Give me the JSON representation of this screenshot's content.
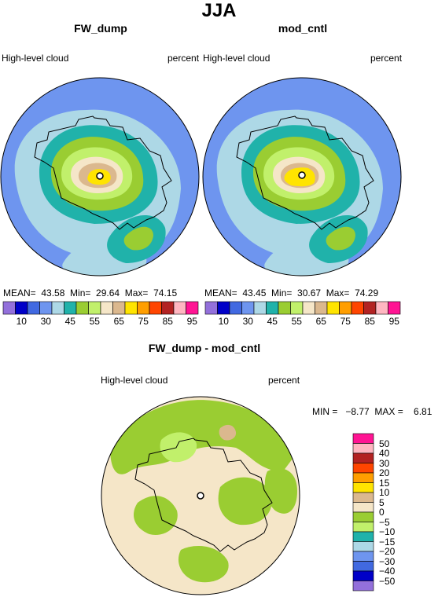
{
  "main_title": "JJA",
  "panels": [
    {
      "title": "FW_dump",
      "left_label": "High-level cloud",
      "right_label": "percent",
      "stats": "MEAN=  43.58  Min=  29.64  Max=  74.15"
    },
    {
      "title": "mod_cntl",
      "left_label": "High-level cloud",
      "right_label": "percent",
      "stats": "MEAN=  43.45  Min=  30.67  Max=  74.29"
    }
  ],
  "diff_panel": {
    "title": "FW_dump - mod_cntl",
    "left_label": "High-level cloud",
    "right_label": "percent",
    "stats": "MIN =   −8.77  MAX =    6.81"
  },
  "colorbar_top": {
    "labels": [
      "10",
      "30",
      "45",
      "55",
      "65",
      "75",
      "85",
      "95"
    ],
    "colors": [
      "#9370db",
      "#0000c8",
      "#4169e1",
      "#6e95ef",
      "#add8e6",
      "#20b2aa",
      "#9acd32",
      "#c1f06b",
      "#f5e6c8",
      "#dbb88e",
      "#ffe400",
      "#ff9e00",
      "#ff4500",
      "#b22222",
      "#ffb6c1",
      "#ff1493"
    ]
  },
  "colorbar_diff": {
    "labels": [
      "50",
      "40",
      "30",
      "20",
      "15",
      "10",
      "5",
      "0",
      "−5",
      "−10",
      "−15",
      "−20",
      "−30",
      "−40",
      "−50"
    ],
    "colors": [
      "#ff1493",
      "#ffb6c1",
      "#b22222",
      "#ff4500",
      "#ff9e00",
      "#ffe400",
      "#dbb88e",
      "#f5e6c8",
      "#9acd32",
      "#c1f06b",
      "#20b2aa",
      "#add8e6",
      "#6e95ef",
      "#4169e1",
      "#0000c8",
      "#9370db"
    ]
  }
}
